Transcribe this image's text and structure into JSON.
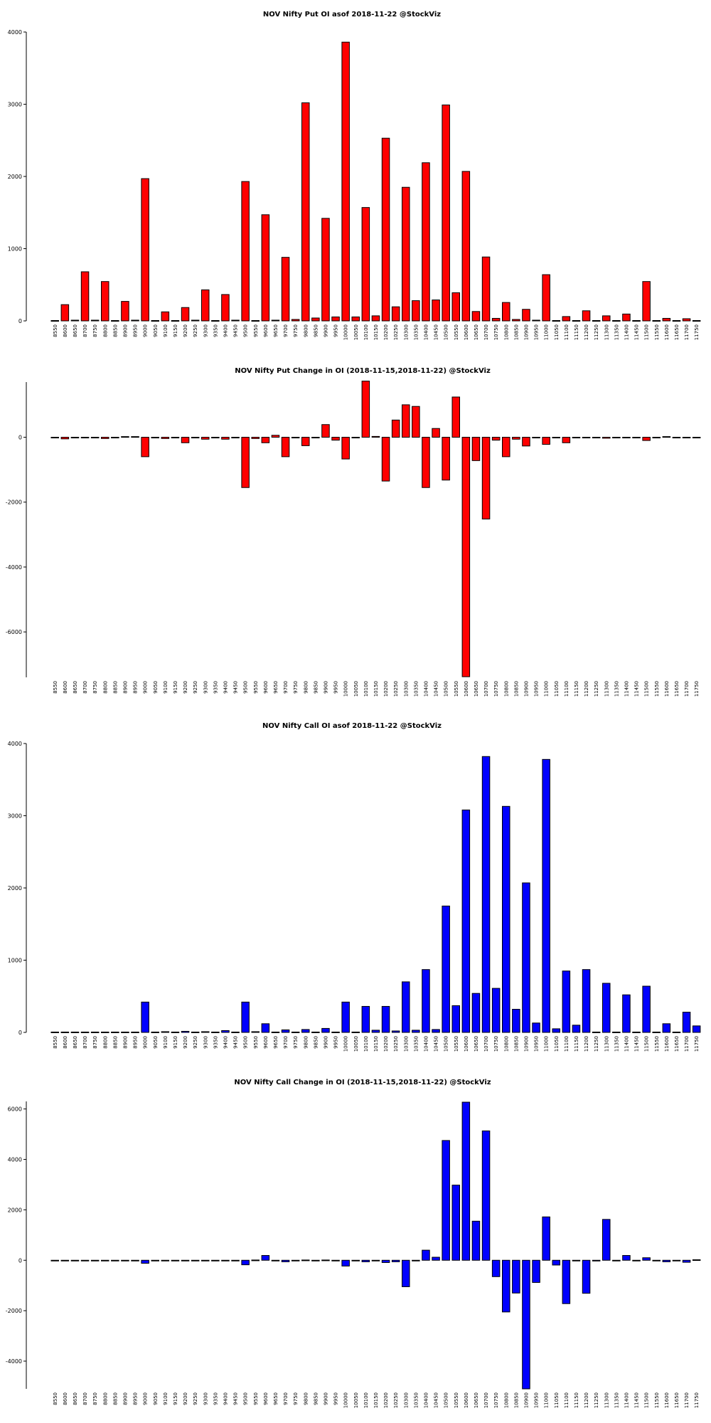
{
  "chart_data": [
    {
      "type": "bar",
      "title": "NOV Nifty Put OI asof 2018-11-22 @StockViz",
      "color": "#ff0000",
      "ylim": [
        0,
        4000
      ],
      "yticks": [
        0,
        1000,
        2000,
        3000,
        4000
      ],
      "categories": [
        "8550",
        "8600",
        "8650",
        "8700",
        "8750",
        "8800",
        "8850",
        "8900",
        "8950",
        "9000",
        "9050",
        "9100",
        "9150",
        "9200",
        "9250",
        "9300",
        "9350",
        "9400",
        "9450",
        "9500",
        "9550",
        "9600",
        "9650",
        "9700",
        "9750",
        "9800",
        "9850",
        "9900",
        "9950",
        "10000",
        "10050",
        "10100",
        "10150",
        "10200",
        "10250",
        "10300",
        "10350",
        "10400",
        "10450",
        "10500",
        "10550",
        "10600",
        "10650",
        "10700",
        "10750",
        "10800",
        "10850",
        "10900",
        "10950",
        "11000",
        "11050",
        "11100",
        "11150",
        "11200",
        "11250",
        "11300",
        "11350",
        "11400",
        "11450",
        "11500",
        "11550",
        "11600",
        "11650",
        "11700",
        "11750"
      ],
      "values": [
        5,
        225,
        10,
        680,
        10,
        545,
        5,
        270,
        10,
        1970,
        5,
        125,
        5,
        185,
        10,
        430,
        5,
        365,
        10,
        1930,
        5,
        1470,
        10,
        880,
        20,
        3020,
        40,
        1420,
        55,
        3860,
        55,
        1570,
        70,
        2530,
        195,
        1850,
        280,
        2190,
        290,
        2990,
        390,
        2070,
        130,
        885,
        35,
        255,
        20,
        160,
        10,
        640,
        5,
        60,
        5,
        140,
        5,
        70,
        5,
        95,
        5,
        545,
        5,
        35,
        5,
        30,
        5
      ]
    },
    {
      "type": "bar",
      "title": "NOV Nifty Put Change in OI (2018-11-15,2018-11-22) @StockViz",
      "color": "#ff0000",
      "ylim": [
        -7400,
        1700
      ],
      "yticks": [
        -6000,
        -4000,
        -2000,
        0
      ],
      "categories": [
        "8550",
        "8600",
        "8650",
        "8700",
        "8750",
        "8800",
        "8850",
        "8900",
        "8950",
        "9000",
        "9050",
        "9100",
        "9150",
        "9200",
        "9250",
        "9300",
        "9350",
        "9400",
        "9450",
        "9500",
        "9550",
        "9600",
        "9650",
        "9700",
        "9750",
        "9800",
        "9850",
        "9900",
        "9950",
        "10000",
        "10050",
        "10100",
        "10150",
        "10200",
        "10250",
        "10300",
        "10350",
        "10400",
        "10450",
        "10500",
        "10550",
        "10600",
        "10650",
        "10700",
        "10750",
        "10800",
        "10850",
        "10900",
        "10950",
        "11000",
        "11050",
        "11100",
        "11150",
        "11200",
        "11250",
        "11300",
        "11350",
        "11400",
        "11450",
        "11500",
        "11550",
        "11600",
        "11650",
        "11700",
        "11750"
      ],
      "values": [
        -10,
        -50,
        -15,
        -20,
        -10,
        -40,
        -5,
        20,
        20,
        -600,
        -10,
        -40,
        -5,
        -170,
        -10,
        -60,
        -5,
        -60,
        -10,
        -1550,
        -40,
        -170,
        60,
        -600,
        -10,
        -260,
        -20,
        390,
        -90,
        -670,
        -10,
        1730,
        25,
        -1350,
        530,
        1000,
        950,
        -1550,
        270,
        -1320,
        1240,
        -7380,
        -720,
        -2520,
        -90,
        -600,
        -60,
        -270,
        -10,
        -220,
        -5,
        -170,
        -5,
        -20,
        -5,
        -30,
        -5,
        -15,
        -5,
        -100,
        -5,
        20,
        -5,
        -10,
        -5
      ]
    },
    {
      "type": "bar",
      "title": "NOV Nifty Call OI asof 2018-11-22 @StockViz",
      "color": "#0000ff",
      "ylim": [
        0,
        4000
      ],
      "yticks": [
        0,
        1000,
        2000,
        3000,
        4000
      ],
      "categories": [
        "8550",
        "8600",
        "8650",
        "8700",
        "8750",
        "8800",
        "8850",
        "8900",
        "8950",
        "9000",
        "9050",
        "9100",
        "9150",
        "9200",
        "9250",
        "9300",
        "9350",
        "9400",
        "9450",
        "9500",
        "9550",
        "9600",
        "9650",
        "9700",
        "9750",
        "9800",
        "9850",
        "9900",
        "9950",
        "10000",
        "10050",
        "10100",
        "10150",
        "10200",
        "10250",
        "10300",
        "10350",
        "10400",
        "10450",
        "10500",
        "10550",
        "10600",
        "10650",
        "10700",
        "10750",
        "10800",
        "10850",
        "10900",
        "10950",
        "11000",
        "11050",
        "11100",
        "11150",
        "11200",
        "11250",
        "11300",
        "11350",
        "11400",
        "11450",
        "11500",
        "11550",
        "11600",
        "11650",
        "11700",
        "11750"
      ],
      "values": [
        5,
        5,
        5,
        5,
        5,
        5,
        5,
        5,
        5,
        420,
        5,
        10,
        5,
        15,
        5,
        10,
        5,
        25,
        5,
        420,
        10,
        120,
        5,
        35,
        5,
        40,
        5,
        55,
        5,
        420,
        5,
        360,
        30,
        360,
        20,
        700,
        30,
        870,
        40,
        1750,
        370,
        3080,
        540,
        3820,
        610,
        3130,
        320,
        2070,
        130,
        3780,
        50,
        850,
        100,
        870,
        5,
        680,
        5,
        520,
        5,
        640,
        5,
        120,
        5,
        280,
        90
      ]
    },
    {
      "type": "bar",
      "title": "NOV Nifty Call Change in OI (2018-11-15,2018-11-22) @StockViz",
      "color": "#0000ff",
      "ylim": [
        -5100,
        6300
      ],
      "yticks": [
        -4000,
        -2000,
        0,
        2000,
        4000,
        6000
      ],
      "categories": [
        "8550",
        "8600",
        "8650",
        "8700",
        "8750",
        "8800",
        "8850",
        "8900",
        "8950",
        "9000",
        "9050",
        "9100",
        "9150",
        "9200",
        "9250",
        "9300",
        "9350",
        "9400",
        "9450",
        "9500",
        "9550",
        "9600",
        "9650",
        "9700",
        "9750",
        "9800",
        "9850",
        "9900",
        "9950",
        "10000",
        "10050",
        "10100",
        "10150",
        "10200",
        "10250",
        "10300",
        "10350",
        "10400",
        "10450",
        "10500",
        "10550",
        "10600",
        "10650",
        "10700",
        "10750",
        "10800",
        "10850",
        "10900",
        "10950",
        "11000",
        "11050",
        "11100",
        "11150",
        "11200",
        "11250",
        "11300",
        "11350",
        "11400",
        "11450",
        "11500",
        "11550",
        "11600",
        "11650",
        "11700",
        "11750"
      ],
      "values": [
        -5,
        -5,
        -5,
        -5,
        -5,
        -5,
        -5,
        -5,
        -5,
        -120,
        -5,
        -5,
        -5,
        -5,
        -5,
        -5,
        -5,
        -5,
        -5,
        -180,
        10,
        190,
        -5,
        -60,
        -5,
        10,
        -5,
        10,
        -5,
        -230,
        -5,
        -60,
        -5,
        -90,
        -60,
        -1050,
        -5,
        400,
        120,
        4750,
        2980,
        6270,
        1550,
        5130,
        -650,
        -2050,
        -1300,
        -5100,
        -880,
        1720,
        -190,
        -1720,
        -5,
        -1310,
        -30,
        1620,
        -5,
        190,
        -5,
        100,
        -10,
        -60,
        -5,
        -80,
        20
      ]
    }
  ]
}
